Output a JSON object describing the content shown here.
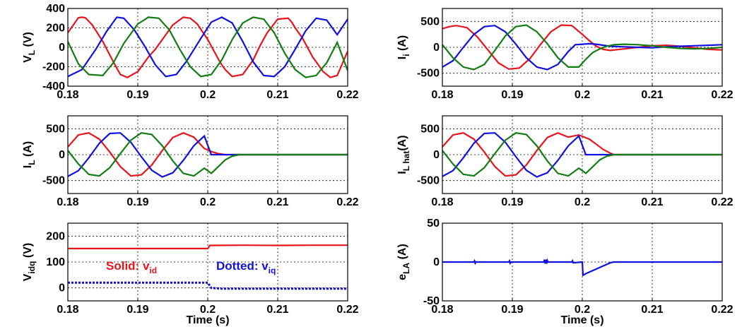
{
  "chart_data": [
    {
      "id": "vl",
      "type": "line",
      "ylabel": "V",
      "ylabel_sub": "L",
      "ylabel_unit": " (V)",
      "xlabel": "",
      "xlim": [
        0.18,
        0.22
      ],
      "ylim": [
        -400,
        400
      ],
      "xticks": [
        "0.18",
        "0.19",
        "0.2",
        "0.21",
        "0.22"
      ],
      "yticks": [
        "-400",
        "-200",
        "0",
        "200",
        "400"
      ],
      "grid": true,
      "series": [
        {
          "color": "#e8141c",
          "x": [
            0.18,
            0.1815,
            0.182,
            0.1825,
            0.1835,
            0.185,
            0.1865,
            0.1875,
            0.1885,
            0.19,
            0.1915,
            0.192,
            0.1925,
            0.1935,
            0.195,
            0.1965,
            0.1975,
            0.1985,
            0.2,
            0.2015,
            0.202,
            0.2025,
            0.2035,
            0.205,
            0.2065,
            0.2075,
            0.2085,
            0.21,
            0.2115,
            0.212,
            0.2125,
            0.2135,
            0.215,
            0.2165,
            0.2175,
            0.2185,
            0.22
          ],
          "y": [
            150,
            305,
            310,
            305,
            230,
            60,
            -150,
            -280,
            -310,
            -250,
            -100,
            -60,
            -20,
            80,
            230,
            310,
            300,
            240,
            80,
            -120,
            -180,
            -230,
            -300,
            -280,
            -130,
            20,
            150,
            290,
            300,
            260,
            200,
            100,
            -100,
            -250,
            -310,
            -290,
            -40
          ]
        },
        {
          "color": "#1010e0",
          "x": [
            0.18,
            0.182,
            0.184,
            0.1855,
            0.187,
            0.188,
            0.1895,
            0.191,
            0.1925,
            0.194,
            0.1955,
            0.197,
            0.199,
            0.2005,
            0.202,
            0.2035,
            0.205,
            0.2065,
            0.208,
            0.2095,
            0.211,
            0.2125,
            0.214,
            0.2155,
            0.217,
            0.2185,
            0.22
          ],
          "y": [
            -300,
            -230,
            -20,
            160,
            310,
            300,
            180,
            10,
            -180,
            -300,
            -280,
            -140,
            90,
            260,
            310,
            250,
            60,
            -150,
            -290,
            -300,
            -200,
            -20,
            170,
            300,
            280,
            130,
            290
          ]
        },
        {
          "color": "#127d12",
          "x": [
            0.18,
            0.1815,
            0.183,
            0.185,
            0.1865,
            0.188,
            0.19,
            0.1915,
            0.193,
            0.1945,
            0.196,
            0.1975,
            0.199,
            0.2005,
            0.202,
            0.2035,
            0.205,
            0.2065,
            0.208,
            0.2095,
            0.211,
            0.2125,
            0.214,
            0.2155,
            0.217,
            0.2185,
            0.22
          ],
          "y": [
            60,
            -170,
            -280,
            -290,
            -160,
            40,
            240,
            310,
            300,
            180,
            -20,
            -200,
            -300,
            -280,
            -130,
            80,
            250,
            310,
            290,
            150,
            -60,
            -230,
            -310,
            -290,
            -160,
            50,
            -240
          ]
        }
      ]
    },
    {
      "id": "ii",
      "type": "line",
      "ylabel": "I",
      "ylabel_sub": "i",
      "ylabel_unit": " (A)",
      "xlabel": "",
      "xlim": [
        0.18,
        0.22
      ],
      "ylim": [
        -750,
        750
      ],
      "xticks": [
        "0.18",
        "0.19",
        "0.2",
        "0.21",
        "0.22"
      ],
      "yticks": [
        "-500",
        "0",
        "500"
      ],
      "grid": true,
      "series": [
        {
          "color": "#e8141c",
          "x": [
            0.18,
            0.181,
            0.182,
            0.1835,
            0.185,
            0.1865,
            0.188,
            0.1895,
            0.191,
            0.1925,
            0.194,
            0.1955,
            0.197,
            0.1985,
            0.2,
            0.201,
            0.202,
            0.203,
            0.204,
            0.206,
            0.208,
            0.21,
            0.212,
            0.214,
            0.216,
            0.218,
            0.22
          ],
          "y": [
            360,
            400,
            420,
            380,
            200,
            -50,
            -300,
            -420,
            -400,
            -220,
            50,
            300,
            430,
            420,
            250,
            130,
            20,
            -40,
            -60,
            -30,
            0,
            30,
            40,
            20,
            -10,
            -40,
            -50
          ]
        },
        {
          "color": "#1010e0",
          "x": [
            0.18,
            0.1815,
            0.183,
            0.1845,
            0.186,
            0.1875,
            0.189,
            0.1905,
            0.192,
            0.1935,
            0.195,
            0.1965,
            0.198,
            0.199,
            0.2,
            0.201,
            0.202,
            0.203,
            0.204,
            0.206,
            0.208,
            0.21,
            0.212,
            0.214,
            0.216,
            0.218,
            0.22
          ],
          "y": [
            -380,
            -260,
            0,
            250,
            400,
            420,
            300,
            60,
            -200,
            -380,
            -430,
            -330,
            -80,
            50,
            60,
            70,
            60,
            40,
            20,
            10,
            0,
            -10,
            10,
            20,
            30,
            40,
            50
          ]
        },
        {
          "color": "#127d12",
          "x": [
            0.18,
            0.1815,
            0.183,
            0.1845,
            0.186,
            0.1875,
            0.189,
            0.1905,
            0.192,
            0.1935,
            0.195,
            0.1965,
            0.198,
            0.1995,
            0.2005,
            0.2015,
            0.2025,
            0.2035,
            0.2045,
            0.206,
            0.208,
            0.21,
            0.212,
            0.214,
            0.216,
            0.218,
            0.22
          ],
          "y": [
            50,
            -200,
            -380,
            -430,
            -330,
            -60,
            220,
            400,
            430,
            300,
            70,
            -200,
            -380,
            -380,
            -230,
            -100,
            -30,
            20,
            50,
            60,
            50,
            30,
            0,
            -20,
            -30,
            -20,
            0
          ]
        }
      ]
    },
    {
      "id": "il",
      "type": "line",
      "ylabel": "I",
      "ylabel_sub": "L",
      "ylabel_unit": " (A)",
      "xlabel": "",
      "xlim": [
        0.18,
        0.22
      ],
      "ylim": [
        -750,
        750
      ],
      "xticks": [
        "0.18",
        "0.19",
        "0.2",
        "0.21",
        "0.22"
      ],
      "yticks": [
        "-500",
        "0",
        "500"
      ],
      "grid": true,
      "series": [
        {
          "color": "#e8141c",
          "x": [
            0.18,
            0.1815,
            0.183,
            0.1845,
            0.186,
            0.1875,
            0.189,
            0.1905,
            0.192,
            0.1935,
            0.195,
            0.1965,
            0.198,
            0.1995,
            0.2005,
            0.2015,
            0.2025,
            0.2035,
            0.2045,
            0.206,
            0.208,
            0.21,
            0.212,
            0.214,
            0.216,
            0.218,
            0.22
          ],
          "y": [
            150,
            380,
            420,
            300,
            50,
            -230,
            -410,
            -390,
            -200,
            80,
            330,
            420,
            340,
            120,
            60,
            20,
            0,
            0,
            0,
            0,
            0,
            0,
            0,
            0,
            0,
            0,
            0
          ]
        },
        {
          "color": "#1010e0",
          "x": [
            0.18,
            0.1815,
            0.183,
            0.1845,
            0.186,
            0.1875,
            0.189,
            0.1905,
            0.192,
            0.1935,
            0.195,
            0.1965,
            0.198,
            0.1995,
            0.2005,
            0.2015,
            0.2025,
            0.2035,
            0.2045,
            0.206,
            0.208,
            0.21,
            0.212,
            0.214,
            0.216,
            0.218,
            0.22
          ],
          "y": [
            -420,
            -310,
            -60,
            220,
            410,
            420,
            240,
            -40,
            -300,
            -430,
            -350,
            -110,
            170,
            360,
            0,
            0,
            0,
            0,
            0,
            0,
            0,
            0,
            0,
            0,
            0,
            0,
            0
          ]
        },
        {
          "color": "#127d12",
          "x": [
            0.18,
            0.1815,
            0.183,
            0.1845,
            0.186,
            0.1875,
            0.189,
            0.1905,
            0.192,
            0.1935,
            0.195,
            0.1965,
            0.198,
            0.1995,
            0.2005,
            0.2015,
            0.2025,
            0.2035,
            0.2045,
            0.206,
            0.208,
            0.21,
            0.212,
            0.214,
            0.216,
            0.218,
            0.22
          ],
          "y": [
            80,
            -180,
            -380,
            -410,
            -250,
            20,
            280,
            420,
            390,
            170,
            -120,
            -360,
            -410,
            -260,
            -360,
            -230,
            -100,
            -30,
            0,
            0,
            0,
            0,
            0,
            0,
            0,
            0,
            0
          ]
        }
      ]
    },
    {
      "id": "ilhat",
      "type": "line",
      "ylabel": "I",
      "ylabel_sub": "L hat",
      "ylabel_unit": "(A)",
      "xlabel": "",
      "xlim": [
        0.18,
        0.22
      ],
      "ylim": [
        -750,
        750
      ],
      "xticks": [
        "0.18",
        "0.19",
        "0.2",
        "0.21",
        "0.22"
      ],
      "yticks": [
        "-500",
        "0",
        "500"
      ],
      "grid": true,
      "series": [
        {
          "color": "#e8141c",
          "x": [
            0.18,
            0.1815,
            0.183,
            0.1845,
            0.186,
            0.1875,
            0.189,
            0.1905,
            0.192,
            0.1935,
            0.195,
            0.1965,
            0.198,
            0.1995,
            0.201,
            0.202,
            0.203,
            0.204,
            0.2045,
            0.206,
            0.208,
            0.21,
            0.212,
            0.214,
            0.216,
            0.218,
            0.22
          ],
          "y": [
            150,
            380,
            420,
            300,
            50,
            -230,
            -410,
            -390,
            -200,
            80,
            330,
            420,
            340,
            380,
            300,
            200,
            100,
            30,
            0,
            0,
            0,
            0,
            0,
            0,
            0,
            0,
            0
          ]
        },
        {
          "color": "#1010e0",
          "x": [
            0.18,
            0.1815,
            0.183,
            0.1845,
            0.186,
            0.1875,
            0.189,
            0.1905,
            0.192,
            0.1935,
            0.195,
            0.1965,
            0.198,
            0.1995,
            0.2005,
            0.2015,
            0.2025,
            0.2035,
            0.2045,
            0.206,
            0.208,
            0.21,
            0.212,
            0.214,
            0.216,
            0.218,
            0.22
          ],
          "y": [
            -420,
            -310,
            -60,
            220,
            410,
            420,
            240,
            -40,
            -300,
            -430,
            -350,
            -110,
            170,
            360,
            0,
            0,
            0,
            0,
            0,
            0,
            0,
            0,
            0,
            0,
            0,
            0,
            0
          ]
        },
        {
          "color": "#127d12",
          "x": [
            0.18,
            0.1815,
            0.183,
            0.1845,
            0.186,
            0.1875,
            0.189,
            0.1905,
            0.192,
            0.1935,
            0.195,
            0.1965,
            0.198,
            0.1995,
            0.2005,
            0.2015,
            0.2025,
            0.2035,
            0.2045,
            0.206,
            0.208,
            0.21,
            0.212,
            0.214,
            0.216,
            0.218,
            0.22
          ],
          "y": [
            80,
            -180,
            -380,
            -410,
            -250,
            20,
            280,
            420,
            390,
            170,
            -120,
            -360,
            -410,
            -260,
            -360,
            -230,
            -100,
            -30,
            0,
            0,
            0,
            0,
            0,
            0,
            0,
            0,
            0
          ]
        }
      ]
    },
    {
      "id": "vidq",
      "type": "line",
      "ylabel": "V",
      "ylabel_sub": "idq",
      "ylabel_unit": " (V)",
      "xlabel": "Time (s)",
      "xlim": [
        0.18,
        0.22
      ],
      "ylim": [
        -50,
        250
      ],
      "xticks": [
        "0.18",
        "0.19",
        "0.2",
        "0.21",
        "0.22"
      ],
      "yticks": [
        "0",
        "100",
        "200"
      ],
      "grid": true,
      "annotations": [
        {
          "color": "#e8141c",
          "text": "Solid: v",
          "sub": "id"
        },
        {
          "color": "#1010e0",
          "text": "Dotted: v",
          "sub": "iq"
        }
      ],
      "series": [
        {
          "color": "#e8141c",
          "style": "solid",
          "x": [
            0.18,
            0.2,
            0.2003,
            0.205,
            0.21,
            0.215,
            0.22
          ],
          "y": [
            152,
            152,
            164,
            165,
            164,
            165,
            165
          ]
        },
        {
          "color": "#1010e0",
          "style": "dotted",
          "x": [
            0.18,
            0.2,
            0.2005,
            0.202,
            0.22
          ],
          "y": [
            20,
            20,
            0,
            -3,
            -3
          ]
        }
      ]
    },
    {
      "id": "ela",
      "type": "line",
      "ylabel": "e",
      "ylabel_sub": "LA",
      "ylabel_unit": " (A)",
      "xlabel": "Time (s)",
      "xlim": [
        0.18,
        0.22
      ],
      "ylim": [
        -50,
        50
      ],
      "xticks": [
        "0.18",
        "0.19",
        "0.2",
        "0.21",
        "0.22"
      ],
      "yticks": [
        "-50",
        "0",
        "50"
      ],
      "grid": true,
      "series": [
        {
          "color": "#1010e0",
          "x": [
            0.18,
            0.1845,
            0.1846,
            0.1847,
            0.1848,
            0.1895,
            0.1896,
            0.1897,
            0.1898,
            0.1945,
            0.1946,
            0.1947,
            0.1948,
            0.1949,
            0.195,
            0.1951,
            0.1985,
            0.1986,
            0.1987,
            0.2,
            0.2001,
            0.2005,
            0.201,
            0.202,
            0.203,
            0.204,
            0.2045,
            0.22
          ],
          "y": [
            0,
            0,
            1.5,
            -1.5,
            0,
            0,
            1.5,
            -1.5,
            0,
            0,
            3,
            -2,
            3,
            -2,
            2,
            0,
            0,
            1.5,
            -1,
            0,
            -17,
            -15,
            -13,
            -9,
            -5,
            -1,
            0,
            0
          ]
        }
      ]
    }
  ]
}
